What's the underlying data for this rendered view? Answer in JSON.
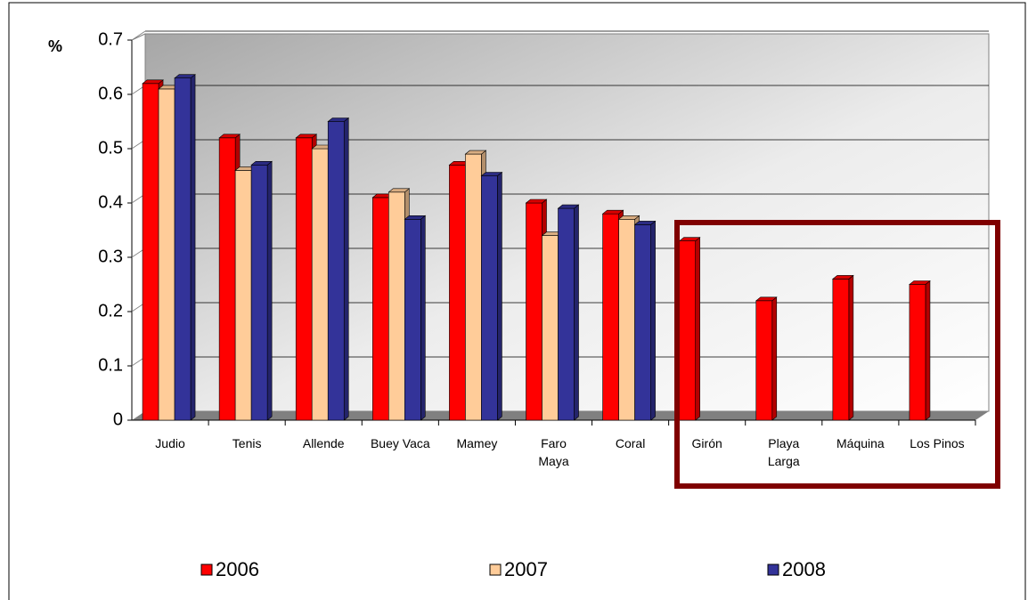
{
  "chart_data": {
    "type": "bar3d",
    "y_label": "%",
    "categories": [
      "Judio",
      "Tenis",
      "Allende",
      "Buey Vaca",
      "Mamey",
      "Faro\nMaya",
      "Coral",
      "Girón",
      "Playa\nLarga",
      "Máquina",
      "Los Pinos"
    ],
    "series": [
      {
        "name": "2006",
        "color": "#ff0000",
        "values": [
          0.62,
          0.52,
          0.52,
          0.41,
          0.47,
          0.4,
          0.38,
          0.33,
          0.22,
          0.26,
          0.25
        ]
      },
      {
        "name": "2007",
        "color": "#ffcc99",
        "values": [
          0.61,
          0.46,
          0.5,
          0.42,
          0.49,
          0.34,
          0.37,
          null,
          null,
          null,
          null
        ]
      },
      {
        "name": "2008",
        "color": "#333399",
        "values": [
          0.63,
          0.47,
          0.55,
          0.37,
          0.45,
          0.39,
          0.36,
          null,
          null,
          null,
          null
        ]
      }
    ],
    "ylim": [
      0,
      0.7
    ],
    "yticks": [
      0,
      0.1,
      0.2,
      0.3,
      0.4,
      0.5,
      0.6,
      0.7
    ],
    "grid": true,
    "legend": "bottom"
  }
}
